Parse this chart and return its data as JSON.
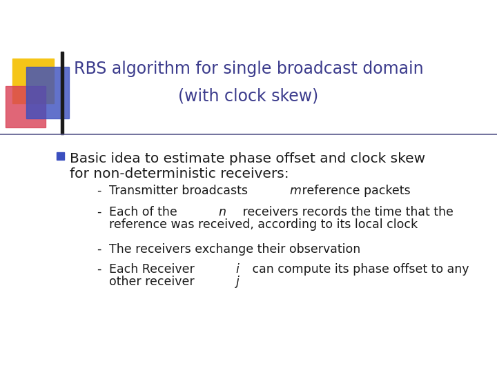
{
  "title_line1": "RBS algorithm for single broadcast domain",
  "title_line2": "(with clock skew)",
  "title_color": "#3B3B8C",
  "title_fontsize": 17,
  "bg_color": "#FFFFFF",
  "bullet_text1": "Basic idea to estimate phase offset and clock skew",
  "bullet_text2": "for non-deterministic receivers:",
  "bullet_color": "#1A1A1A",
  "bullet_fontsize": 14.5,
  "subbullet_fontsize": 12.5,
  "subbullet_color": "#1A1A1A",
  "square_colors": [
    "#F5C518",
    "#D94055",
    "#3B4FBF"
  ],
  "line_color": "#5A5A8C",
  "bullet_square_color": "#3B4FBF"
}
